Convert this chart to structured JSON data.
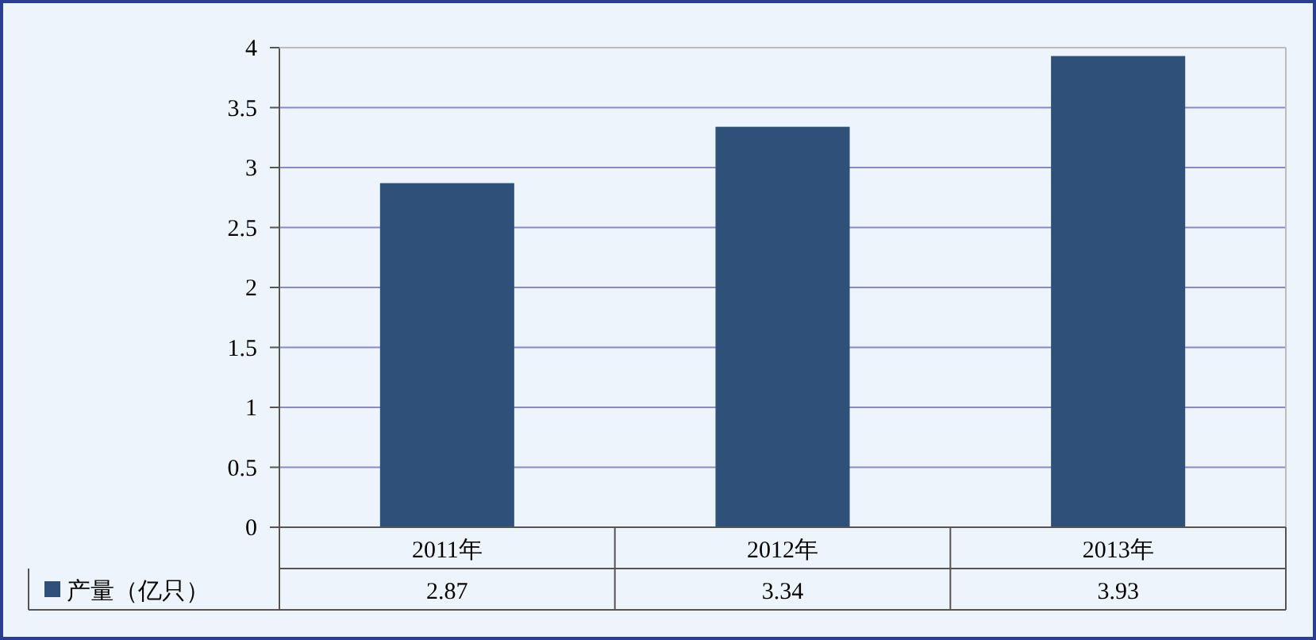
{
  "chart_data": {
    "type": "bar",
    "categories": [
      "2011年",
      "2012年",
      "2013年"
    ],
    "series": [
      {
        "name": "产量（亿只）",
        "color": "#2f5079",
        "values": [
          2.87,
          3.34,
          3.93
        ]
      }
    ],
    "ylim": [
      0,
      4
    ],
    "yticks": [
      0,
      0.5,
      1,
      1.5,
      2,
      2.5,
      3,
      3.5,
      4
    ],
    "grid": "y",
    "data_labels": true,
    "legend": "bottom"
  }
}
